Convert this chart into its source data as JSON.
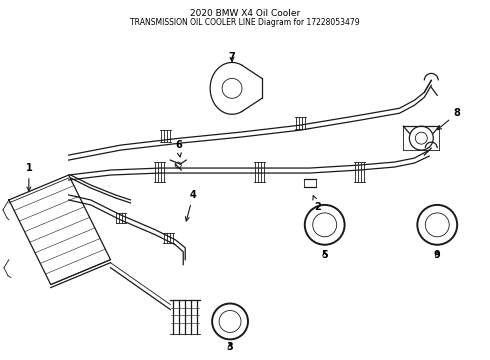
{
  "title": "2020 BMW X4 Oil Cooler",
  "subtitle": "TRANSMISSION OIL COOLER LINE Diagram for 17228053479",
  "background_color": "#ffffff",
  "line_color": "#1a1a1a",
  "text_color": "#000000",
  "fig_width": 4.9,
  "fig_height": 3.6,
  "dpi": 100
}
